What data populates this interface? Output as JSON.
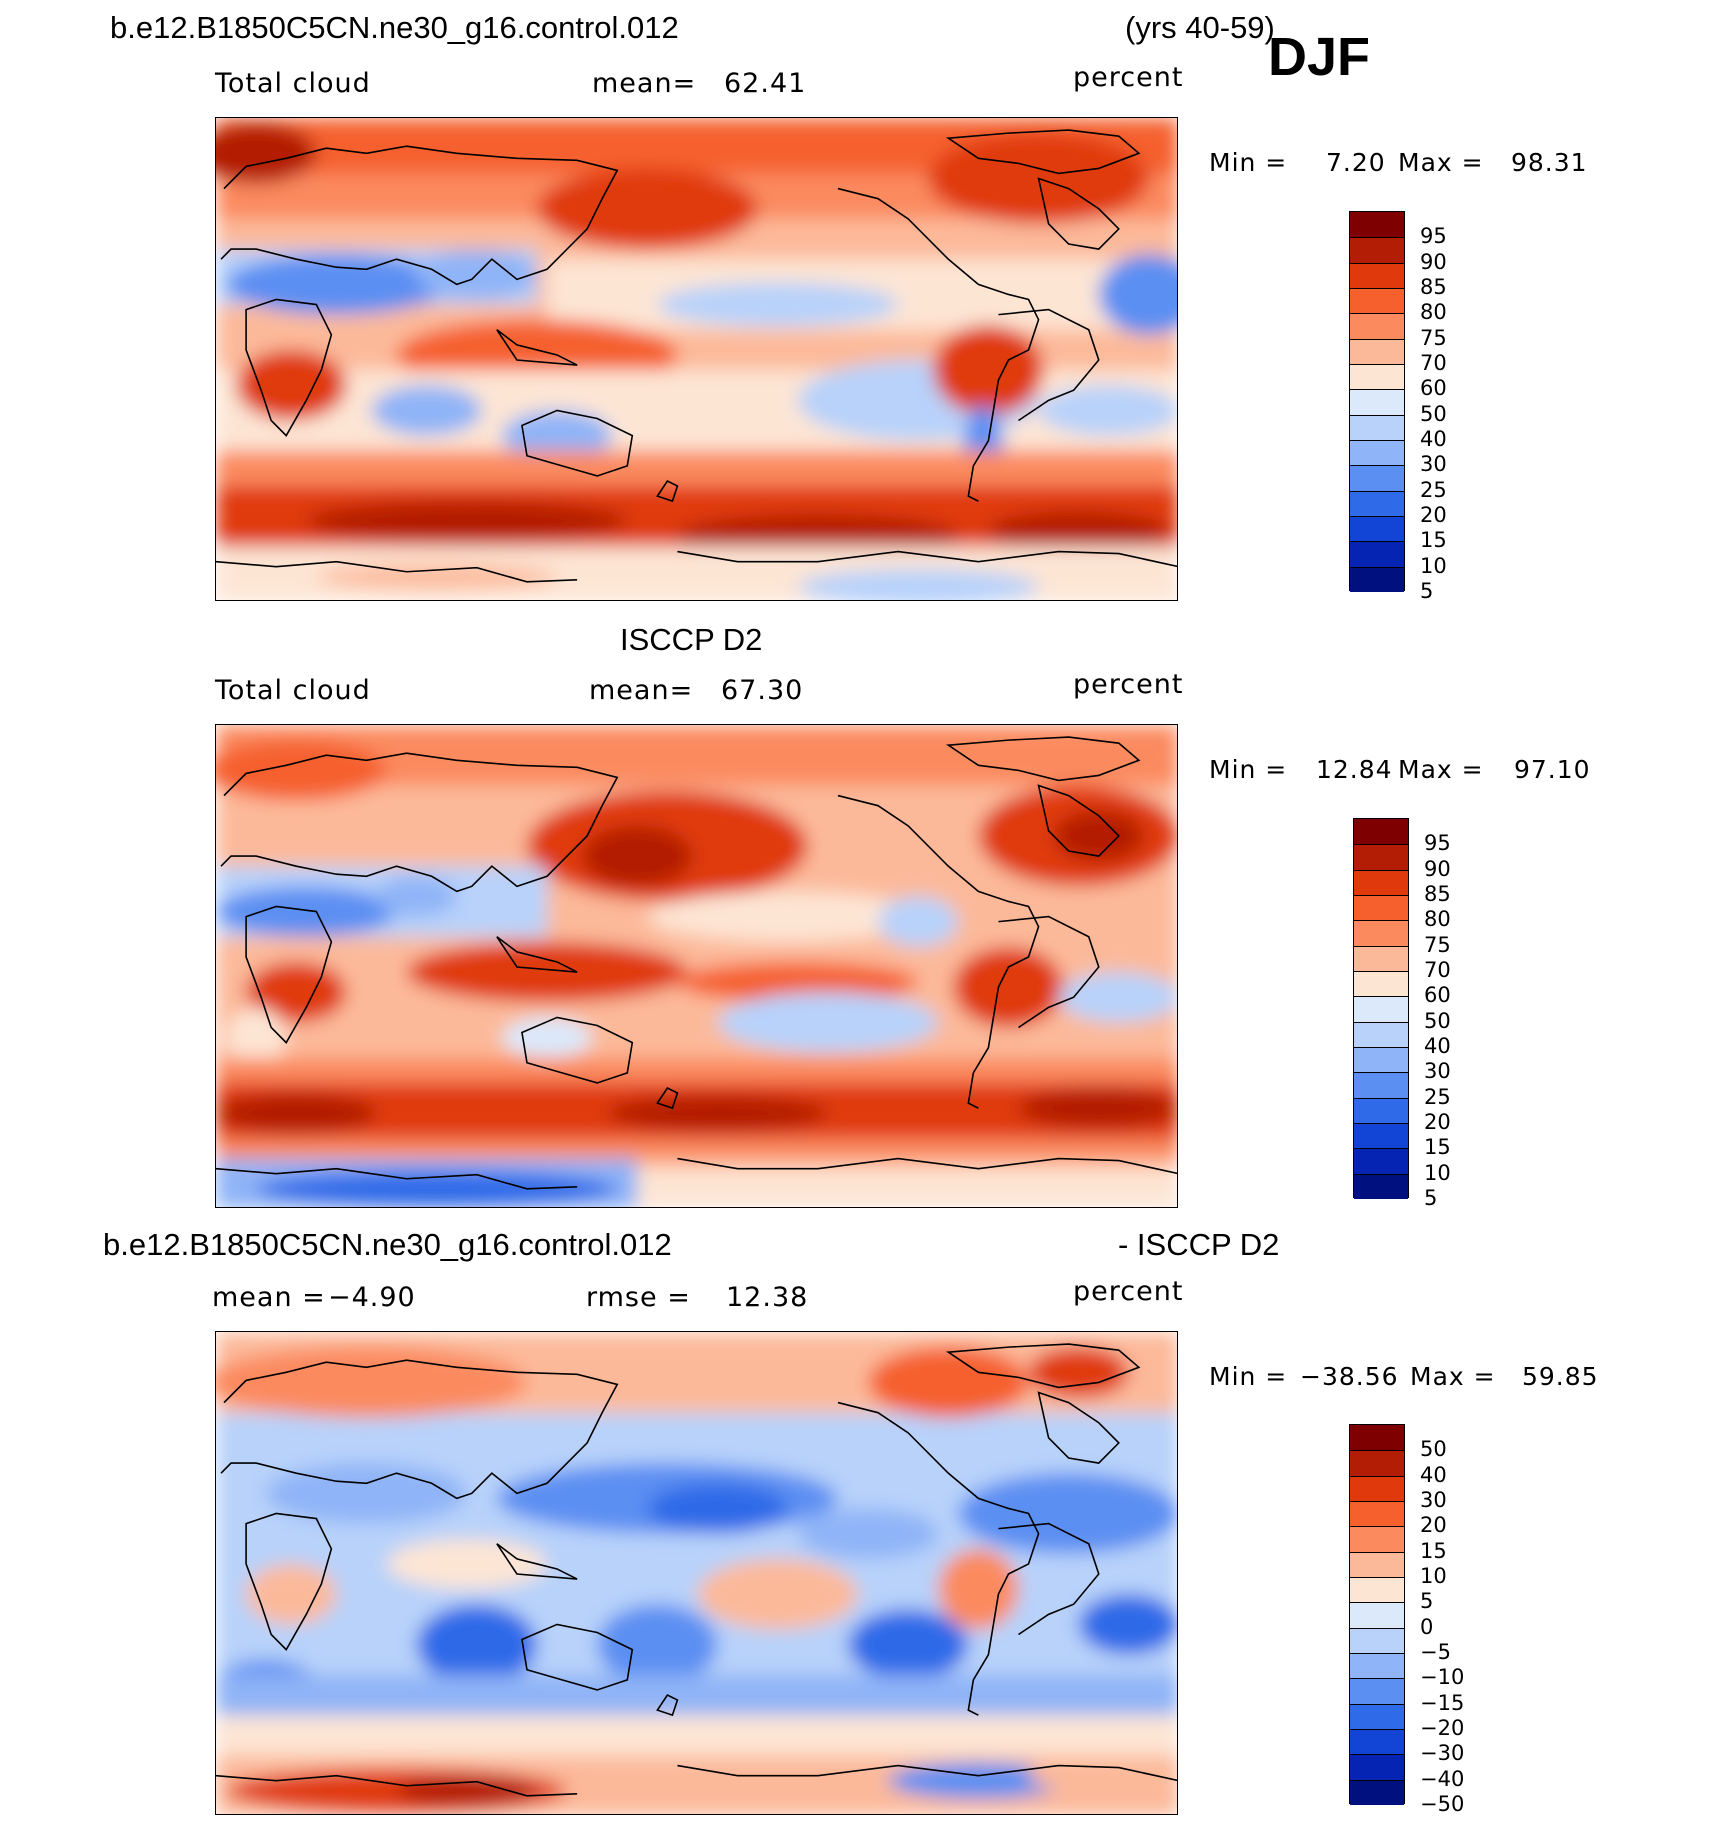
{
  "header": {
    "case_name": "b.e12.B1850C5CN.ne30_g16.control.012",
    "years": "(yrs 40-59)",
    "season": "DJF"
  },
  "panels": [
    {
      "id": "model",
      "title": "",
      "left_label": "Total cloud",
      "center_label": "mean=",
      "center_value": "62.41",
      "units": "percent",
      "min_label": "Min =",
      "min_value": "7.20",
      "max_label": "Max =",
      "max_value": "98.31",
      "colorbar": {
        "colors": [
          "#7f0000",
          "#b31d05",
          "#e03a0c",
          "#f5602d",
          "#fb8a5f",
          "#fcb99a",
          "#fde5d4",
          "#dbe9fb",
          "#b8d2fa",
          "#8fb4f7",
          "#5c8ff2",
          "#2f6ae8",
          "#1245d6",
          "#0624b4",
          "#00107f"
        ],
        "labels": [
          "95",
          "90",
          "85",
          "80",
          "75",
          "70",
          "60",
          "50",
          "40",
          "30",
          "25",
          "20",
          "15",
          "10",
          "5"
        ]
      }
    },
    {
      "id": "obs",
      "title": "ISCCP D2",
      "left_label": "Total cloud",
      "center_label": "mean=",
      "center_value": "67.30",
      "units": "percent",
      "min_label": "Min =",
      "min_value": "12.84",
      "max_label": "Max =",
      "max_value": "97.10",
      "colorbar": {
        "colors": [
          "#7f0000",
          "#b31d05",
          "#e03a0c",
          "#f5602d",
          "#fb8a5f",
          "#fcb99a",
          "#fde5d4",
          "#dbe9fb",
          "#b8d2fa",
          "#8fb4f7",
          "#5c8ff2",
          "#2f6ae8",
          "#1245d6",
          "#0624b4",
          "#00107f"
        ],
        "labels": [
          "95",
          "90",
          "85",
          "80",
          "75",
          "70",
          "60",
          "50",
          "40",
          "30",
          "25",
          "20",
          "15",
          "10",
          "5"
        ]
      }
    },
    {
      "id": "diff",
      "title_left": "b.e12.B1850C5CN.ne30_g16.control.012",
      "title_right": "- ISCCP D2",
      "left_label": "mean =",
      "left_value": "−4.90",
      "center_label": "rmse =",
      "center_value": "12.38",
      "units": "percent",
      "min_label": "Min =",
      "min_value": "−38.56",
      "max_label": "Max =",
      "max_value": "59.85",
      "colorbar": {
        "colors": [
          "#7f0000",
          "#b31d05",
          "#e03a0c",
          "#f5602d",
          "#fb8a5f",
          "#fcb99a",
          "#fde5d4",
          "#dbe9fb",
          "#b8d2fa",
          "#8fb4f7",
          "#5c8ff2",
          "#2f6ae8",
          "#1245d6",
          "#0624b4",
          "#00107f"
        ],
        "labels": [
          "50",
          "40",
          "30",
          "20",
          "15",
          "10",
          "5",
          "0",
          "−5",
          "−10",
          "−15",
          "−20",
          "−30",
          "−40",
          "−50"
        ]
      }
    }
  ]
}
